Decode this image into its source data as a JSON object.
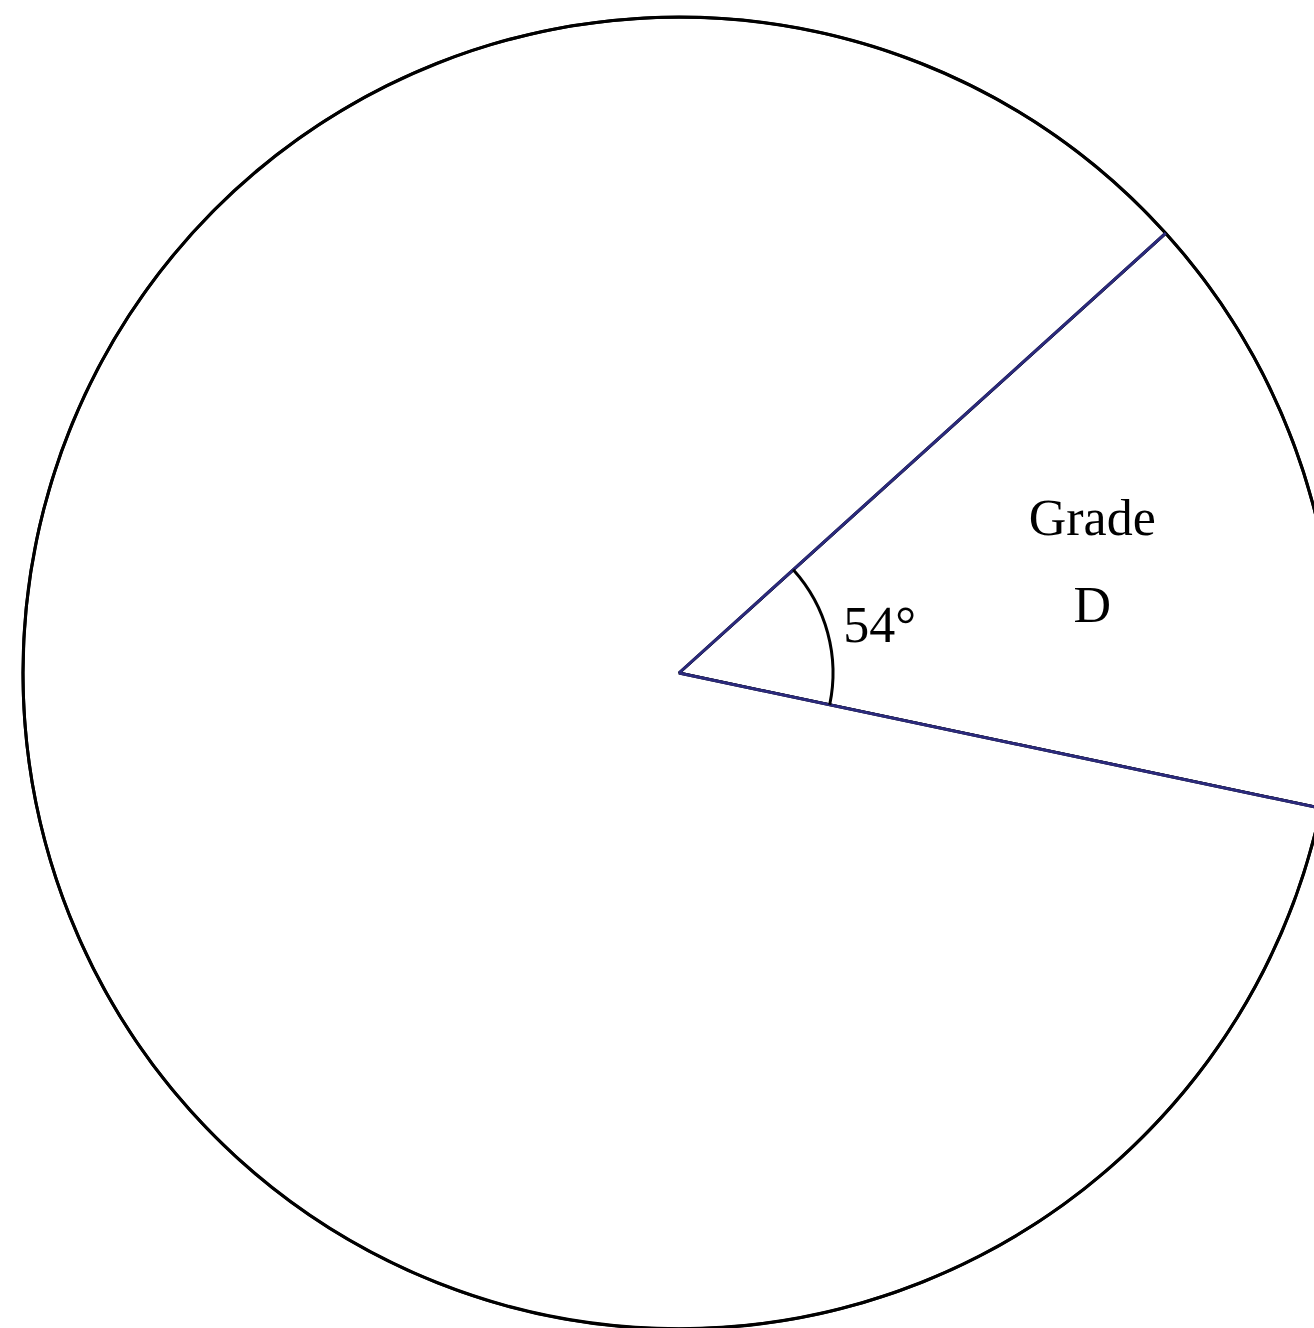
{
  "chart_data": {
    "type": "pie",
    "categories": [
      "Grade D",
      null
    ],
    "values": [
      15,
      85
    ],
    "colors": [
      "#ffffff",
      "#ffffff"
    ],
    "annotations": [
      "54°"
    ]
  }
}
